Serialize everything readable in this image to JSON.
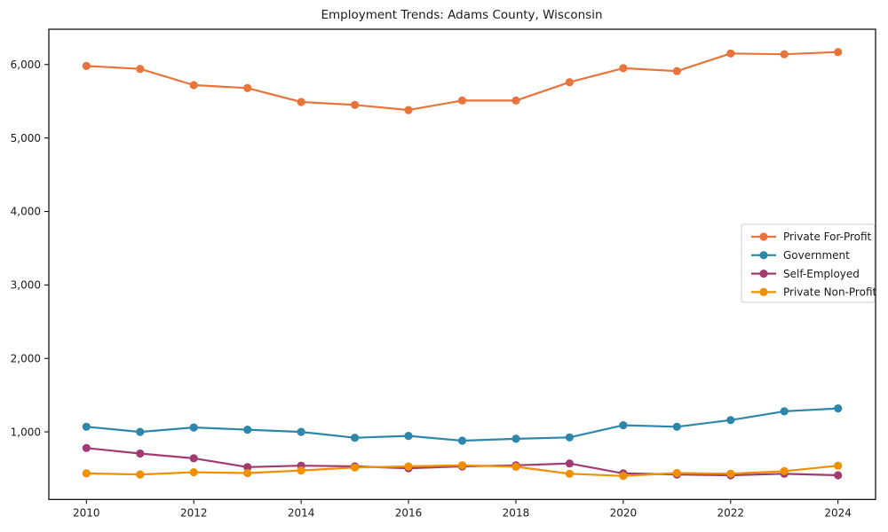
{
  "figure": {
    "background_color": "#ffffff",
    "axis_color": "#000000",
    "text_color": "#1a1a1a"
  },
  "chart_data": {
    "type": "line",
    "title": "Employment Trends: Adams County, Wisconsin",
    "xlabel": "",
    "ylabel": "",
    "grid": false,
    "legend_position": "center right",
    "x": [
      2010,
      2011,
      2012,
      2013,
      2014,
      2015,
      2016,
      2017,
      2018,
      2019,
      2020,
      2021,
      2022,
      2023,
      2024
    ],
    "xticks": [
      2010,
      2012,
      2014,
      2016,
      2018,
      2020,
      2022,
      2024
    ],
    "xtick_labels": [
      "2010",
      "2012",
      "2014",
      "2016",
      "2018",
      "2020",
      "2022",
      "2024"
    ],
    "yticks": [
      1000,
      2000,
      3000,
      4000,
      5000,
      6000
    ],
    "ytick_labels": [
      "1,000",
      "2,000",
      "3,000",
      "4,000",
      "5,000",
      "6,000"
    ],
    "xlim": [
      2009.3,
      2024.7
    ],
    "ylim": [
      80,
      6480
    ],
    "series": [
      {
        "name": "Private For-Profit",
        "color": "#e8743b",
        "values": [
          5980,
          5940,
          5720,
          5680,
          5490,
          5450,
          5380,
          5510,
          5510,
          5760,
          5950,
          5910,
          6150,
          6140,
          6170
        ]
      },
      {
        "name": "Government",
        "color": "#2e86ab",
        "values": [
          1070,
          1000,
          1060,
          1030,
          1000,
          920,
          945,
          880,
          905,
          925,
          1090,
          1070,
          1160,
          1280,
          1320
        ]
      },
      {
        "name": "Self-Employed",
        "color": "#a23b72",
        "values": [
          780,
          705,
          640,
          520,
          540,
          530,
          505,
          530,
          545,
          570,
          435,
          420,
          410,
          430,
          410
        ]
      },
      {
        "name": "Private Non-Profit",
        "color": "#f18f01",
        "values": [
          435,
          420,
          450,
          440,
          475,
          515,
          530,
          545,
          525,
          430,
          400,
          440,
          430,
          465,
          540
        ]
      }
    ]
  }
}
